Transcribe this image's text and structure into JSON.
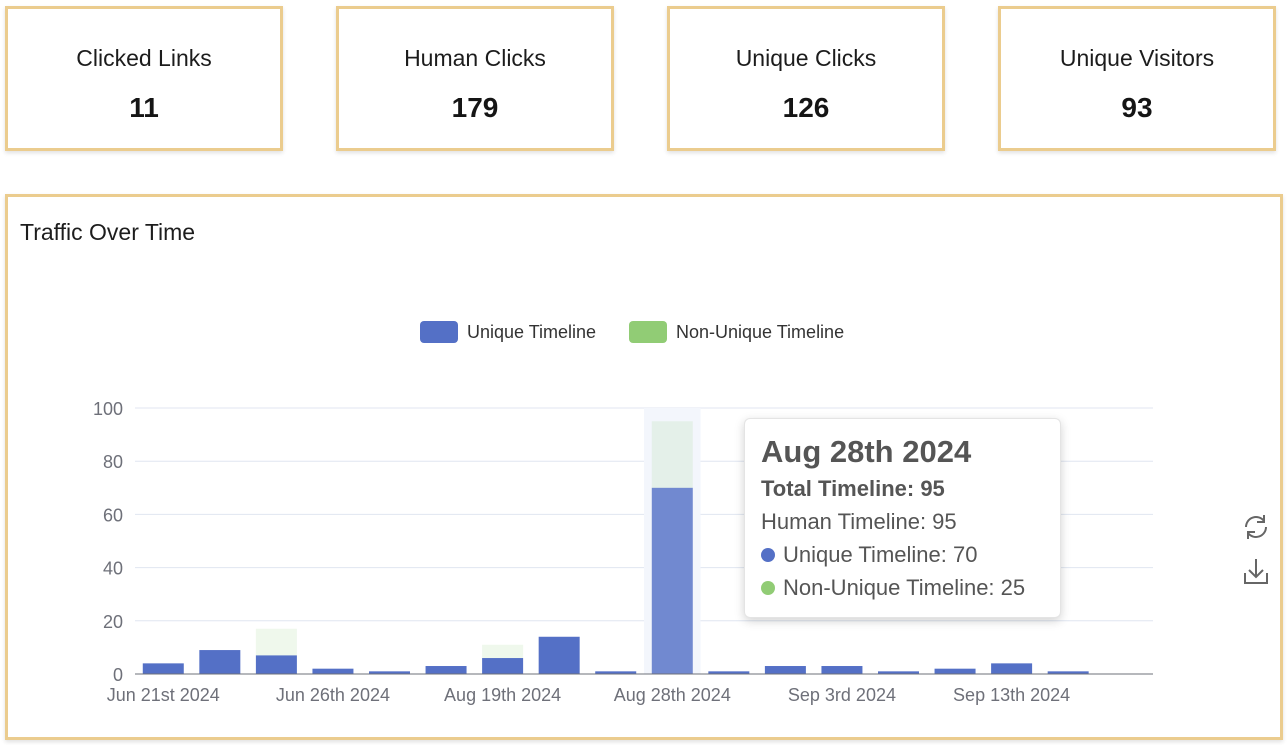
{
  "stats": [
    {
      "label": "Clicked Links",
      "value": "11"
    },
    {
      "label": "Human Clicks",
      "value": "179"
    },
    {
      "label": "Unique Clicks",
      "value": "126"
    },
    {
      "label": "Unique Visitors",
      "value": "93"
    }
  ],
  "panel": {
    "title": "Traffic Over Time"
  },
  "colors": {
    "unique": "#5470c6",
    "non_unique": "#91cc75",
    "card_border": "#ebcc8e"
  },
  "icons": {
    "refresh": "refresh-icon",
    "download": "download-icon"
  },
  "tooltip": {
    "date": "Aug 28th 2024",
    "total": "Total Timeline: 95",
    "human": "Human Timeline: 95",
    "unique": "Unique Timeline: 70",
    "non_unique": "Non-Unique Timeline: 25"
  },
  "chart_data": {
    "type": "bar",
    "stacked": true,
    "legend_position": "top-center",
    "grid": true,
    "ylim": [
      0,
      100
    ],
    "yticks": [
      0,
      20,
      40,
      60,
      80,
      100
    ],
    "categories": [
      "Jun 21st 2024",
      "",
      "",
      "Jun 26th 2024",
      "",
      "",
      "Aug 19th 2024",
      "",
      "",
      "Aug 28th 2024",
      "",
      "",
      "Sep 3rd 2024",
      "",
      "",
      "Sep 13th 2024",
      "",
      ""
    ],
    "xtick_labels": [
      "Jun 21st 2024",
      "Jun 26th 2024",
      "Aug 19th 2024",
      "Aug 28th 2024",
      "Sep 3rd 2024",
      "Sep 13th 2024"
    ],
    "series": [
      {
        "name": "Unique Timeline",
        "values": [
          4,
          9,
          7,
          2,
          1,
          3,
          6,
          14,
          1,
          70,
          1,
          3,
          3,
          1,
          2,
          4,
          1,
          0
        ]
      },
      {
        "name": "Non-Unique Timeline",
        "values": [
          0,
          0,
          10,
          0,
          0,
          0,
          5,
          0,
          0,
          25,
          0,
          0,
          0,
          0,
          0,
          0,
          0,
          0
        ]
      }
    ],
    "highlighted_category_index": 9
  }
}
